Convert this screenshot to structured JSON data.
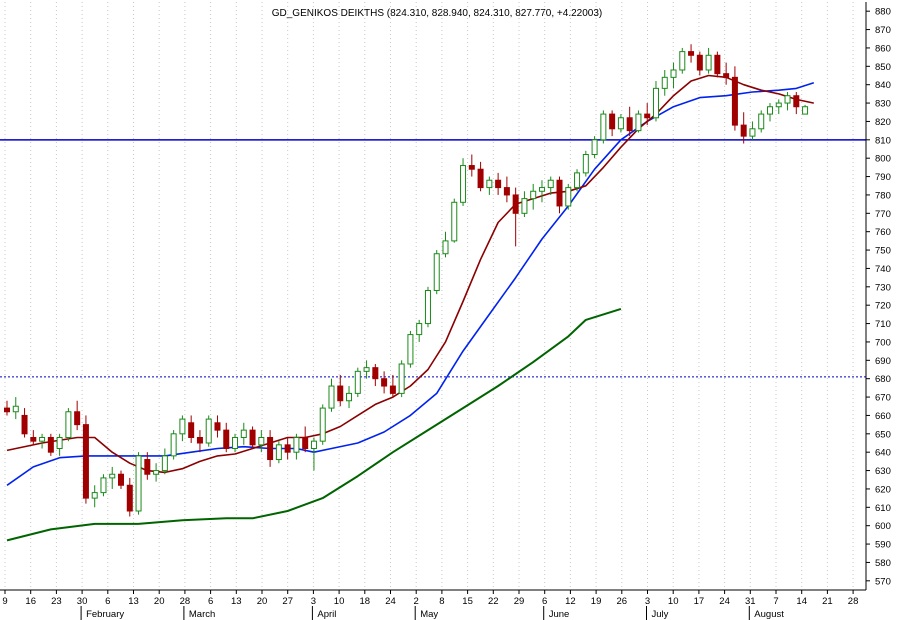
{
  "chart_data": {
    "type": "candlestick",
    "title": "GD_GENIKOS DEIKTHS (824.310, 828.940, 824.310, 827.770, +4.22003)",
    "ylim": [
      565,
      885
    ],
    "yticks": [
      570,
      580,
      590,
      600,
      610,
      620,
      630,
      640,
      650,
      660,
      670,
      680,
      690,
      700,
      710,
      720,
      730,
      740,
      750,
      760,
      770,
      780,
      790,
      800,
      810,
      820,
      830,
      840,
      850,
      860,
      870,
      880
    ],
    "x_tick_labels": [
      "9",
      "16",
      "23",
      "30",
      "6",
      "13",
      "20",
      "28",
      "6",
      "13",
      "20",
      "27",
      "3",
      "10",
      "18",
      "24",
      "2",
      "8",
      "15",
      "22",
      "29",
      "6",
      "12",
      "19",
      "26",
      "3",
      "10",
      "17",
      "24",
      "31",
      "7",
      "14",
      "21",
      "28"
    ],
    "month_labels": [
      "February",
      "March",
      "April",
      "May",
      "June",
      "July",
      "August"
    ],
    "grid": "vertical dotted",
    "hlines": [
      {
        "value": 810,
        "style": "solid",
        "color": "#0000cc"
      },
      {
        "value": 681,
        "style": "dotted",
        "color": "#0000cc"
      }
    ],
    "colors": {
      "up": "#1a8a1a",
      "down": "#a00000",
      "ma_short": "#8b0000",
      "ma_mid": "#0022ee",
      "ma_long": "#006400",
      "grid": "#c8c8c8"
    },
    "candles": [
      [
        664,
        668,
        660,
        662
      ],
      [
        662,
        670,
        658,
        665
      ],
      [
        660,
        664,
        648,
        650
      ],
      [
        648,
        652,
        644,
        646
      ],
      [
        646,
        650,
        642,
        648
      ],
      [
        648,
        650,
        638,
        640
      ],
      [
        642,
        650,
        638,
        648
      ],
      [
        648,
        664,
        646,
        662
      ],
      [
        662,
        668,
        652,
        655
      ],
      [
        655,
        660,
        612,
        615
      ],
      [
        615,
        622,
        610,
        618
      ],
      [
        618,
        628,
        616,
        626
      ],
      [
        626,
        632,
        620,
        628
      ],
      [
        628,
        630,
        620,
        622
      ],
      [
        622,
        626,
        605,
        608
      ],
      [
        608,
        640,
        606,
        638
      ],
      [
        636,
        640,
        625,
        628
      ],
      [
        628,
        634,
        624,
        630
      ],
      [
        630,
        642,
        628,
        638
      ],
      [
        638,
        652,
        636,
        650
      ],
      [
        650,
        660,
        646,
        658
      ],
      [
        656,
        660,
        645,
        648
      ],
      [
        648,
        652,
        640,
        645
      ],
      [
        645,
        660,
        643,
        658
      ],
      [
        656,
        660,
        648,
        652
      ],
      [
        652,
        656,
        640,
        642
      ],
      [
        642,
        650,
        640,
        648
      ],
      [
        648,
        656,
        644,
        652
      ],
      [
        652,
        654,
        642,
        644
      ],
      [
        644,
        652,
        640,
        648
      ],
      [
        648,
        652,
        632,
        636
      ],
      [
        636,
        646,
        634,
        644
      ],
      [
        644,
        648,
        636,
        640
      ],
      [
        640,
        650,
        636,
        648
      ],
      [
        648,
        654,
        640,
        642
      ],
      [
        642,
        648,
        630,
        646
      ],
      [
        646,
        666,
        644,
        664
      ],
      [
        664,
        680,
        662,
        676
      ],
      [
        676,
        682,
        665,
        668
      ],
      [
        668,
        676,
        664,
        672
      ],
      [
        672,
        686,
        670,
        684
      ],
      [
        684,
        690,
        680,
        686
      ],
      [
        686,
        688,
        676,
        680
      ],
      [
        680,
        684,
        672,
        676
      ],
      [
        676,
        682,
        670,
        672
      ],
      [
        672,
        690,
        670,
        688
      ],
      [
        688,
        706,
        686,
        704
      ],
      [
        704,
        712,
        700,
        710
      ],
      [
        710,
        730,
        708,
        728
      ],
      [
        728,
        750,
        726,
        748
      ],
      [
        748,
        760,
        746,
        755
      ],
      [
        755,
        778,
        754,
        776
      ],
      [
        776,
        800,
        774,
        796
      ],
      [
        796,
        802,
        790,
        794
      ],
      [
        794,
        798,
        782,
        784
      ],
      [
        784,
        790,
        780,
        788
      ],
      [
        788,
        792,
        780,
        784
      ],
      [
        784,
        790,
        776,
        780
      ],
      [
        780,
        784,
        752,
        770
      ],
      [
        770,
        782,
        768,
        778
      ],
      [
        778,
        786,
        772,
        782
      ],
      [
        782,
        788,
        776,
        784
      ],
      [
        784,
        790,
        780,
        788
      ],
      [
        788,
        790,
        770,
        774
      ],
      [
        774,
        786,
        772,
        784
      ],
      [
        784,
        794,
        782,
        792
      ],
      [
        792,
        804,
        790,
        802
      ],
      [
        802,
        812,
        800,
        810
      ],
      [
        810,
        826,
        808,
        824
      ],
      [
        824,
        826,
        812,
        816
      ],
      [
        816,
        824,
        814,
        822
      ],
      [
        822,
        828,
        812,
        815
      ],
      [
        815,
        826,
        814,
        824
      ],
      [
        824,
        830,
        818,
        822
      ],
      [
        822,
        842,
        820,
        838
      ],
      [
        838,
        848,
        834,
        844
      ],
      [
        844,
        852,
        838,
        848
      ],
      [
        848,
        860,
        846,
        858
      ],
      [
        858,
        862,
        852,
        856
      ],
      [
        856,
        858,
        845,
        848
      ],
      [
        848,
        860,
        846,
        856
      ],
      [
        856,
        858,
        844,
        846
      ],
      [
        846,
        852,
        840,
        844
      ],
      [
        844,
        850,
        815,
        818
      ],
      [
        818,
        825,
        808,
        812
      ],
      [
        812,
        820,
        810,
        816
      ],
      [
        816,
        826,
        814,
        824
      ],
      [
        824,
        830,
        820,
        828
      ],
      [
        828,
        832,
        824,
        830
      ],
      [
        830,
        836,
        826,
        834
      ],
      [
        834,
        836,
        824,
        828
      ],
      [
        824,
        829,
        824,
        828
      ]
    ],
    "ma_short": [
      [
        0,
        641
      ],
      [
        4,
        645
      ],
      [
        8,
        648
      ],
      [
        10,
        648
      ],
      [
        12,
        640
      ],
      [
        14,
        634
      ],
      [
        16,
        630
      ],
      [
        18,
        629
      ],
      [
        20,
        631
      ],
      [
        22,
        635
      ],
      [
        24,
        638
      ],
      [
        26,
        639
      ],
      [
        28,
        642
      ],
      [
        30,
        645
      ],
      [
        32,
        648
      ],
      [
        34,
        648
      ],
      [
        36,
        650
      ],
      [
        38,
        654
      ],
      [
        40,
        660
      ],
      [
        42,
        666
      ],
      [
        44,
        670
      ],
      [
        46,
        676
      ],
      [
        48,
        685
      ],
      [
        50,
        700
      ],
      [
        52,
        722
      ],
      [
        54,
        745
      ],
      [
        56,
        765
      ],
      [
        58,
        775
      ],
      [
        60,
        778
      ],
      [
        62,
        781
      ],
      [
        64,
        782
      ],
      [
        66,
        785
      ],
      [
        68,
        795
      ],
      [
        70,
        806
      ],
      [
        72,
        816
      ],
      [
        74,
        824
      ],
      [
        76,
        834
      ],
      [
        78,
        842
      ],
      [
        80,
        845
      ],
      [
        82,
        844
      ],
      [
        84,
        840
      ],
      [
        86,
        837
      ],
      [
        88,
        835
      ],
      [
        90,
        832
      ],
      [
        92,
        830
      ]
    ],
    "ma_mid": [
      [
        0,
        622
      ],
      [
        3,
        632
      ],
      [
        6,
        637
      ],
      [
        9,
        638
      ],
      [
        12,
        638
      ],
      [
        15,
        638
      ],
      [
        18,
        638
      ],
      [
        21,
        640
      ],
      [
        24,
        642
      ],
      [
        27,
        643
      ],
      [
        30,
        642
      ],
      [
        33,
        642
      ],
      [
        35,
        640
      ],
      [
        37,
        642
      ],
      [
        40,
        645
      ],
      [
        43,
        651
      ],
      [
        46,
        660
      ],
      [
        49,
        672
      ],
      [
        52,
        695
      ],
      [
        55,
        715
      ],
      [
        58,
        735
      ],
      [
        61,
        756
      ],
      [
        64,
        774
      ],
      [
        67,
        794
      ],
      [
        70,
        810
      ],
      [
        73,
        820
      ],
      [
        76,
        828
      ],
      [
        79,
        833
      ],
      [
        82,
        834
      ],
      [
        85,
        836
      ],
      [
        88,
        837
      ],
      [
        90,
        838
      ],
      [
        92,
        841
      ]
    ],
    "ma_long": [
      [
        0,
        592
      ],
      [
        5,
        598
      ],
      [
        10,
        601
      ],
      [
        15,
        601
      ],
      [
        20,
        603
      ],
      [
        25,
        604
      ],
      [
        28,
        604
      ],
      [
        32,
        608
      ],
      [
        36,
        615
      ],
      [
        40,
        627
      ],
      [
        44,
        640
      ],
      [
        48,
        652
      ],
      [
        52,
        664
      ],
      [
        56,
        676
      ],
      [
        60,
        689
      ],
      [
        64,
        703
      ],
      [
        66,
        712
      ],
      [
        70,
        718
      ]
    ]
  }
}
